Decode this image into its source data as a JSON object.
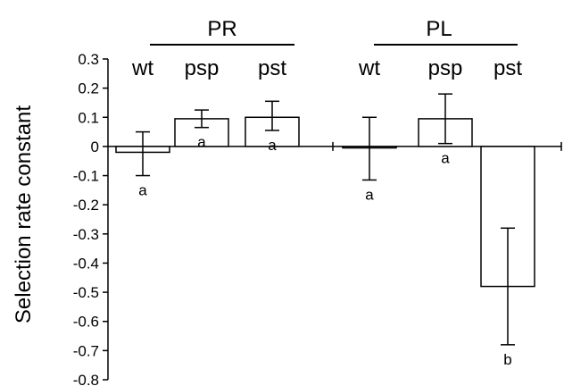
{
  "chart_data": {
    "type": "bar",
    "ylabel": "Selection rate constant",
    "ylim": [
      -0.8,
      0.3
    ],
    "yticks": [
      0.3,
      0.2,
      0.1,
      0,
      -0.1,
      -0.2,
      -0.3,
      -0.4,
      -0.5,
      -0.6,
      -0.7,
      -0.8
    ],
    "ytick_labels": [
      "0.3",
      "0.2",
      "0.1",
      "0",
      "-0.1",
      "-0.2",
      "-0.3",
      "-0.4",
      "-0.5",
      "-0.6",
      "-0.7",
      "-0.8"
    ],
    "grid": false,
    "groups": [
      {
        "name": "PR",
        "bars": [
          {
            "label": "wt",
            "value": -0.02,
            "err_low": -0.1,
            "err_high": 0.05,
            "letter": "a"
          },
          {
            "label": "psp",
            "value": 0.095,
            "err_low": 0.065,
            "err_high": 0.125,
            "letter": "a"
          },
          {
            "label": "pst",
            "value": 0.1,
            "err_low": 0.055,
            "err_high": 0.155,
            "letter": "a"
          }
        ]
      },
      {
        "name": "PL",
        "bars": [
          {
            "label": "wt",
            "value": -0.005,
            "err_low": -0.115,
            "err_high": 0.1,
            "letter": "a"
          },
          {
            "label": "psp",
            "value": 0.095,
            "err_low": 0.01,
            "err_high": 0.18,
            "letter": "a"
          },
          {
            "label": "pst",
            "value": -0.48,
            "err_low": -0.68,
            "err_high": -0.28,
            "letter": "b"
          }
        ]
      }
    ]
  }
}
